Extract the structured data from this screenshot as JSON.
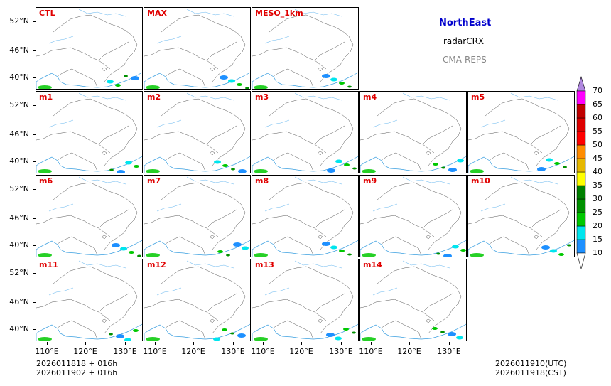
{
  "header": {
    "region": "NorthEast",
    "variable": "radarCRX",
    "system": "CMA-REPS",
    "region_color": "#0000cc",
    "system_color": "#888888"
  },
  "panels": [
    {
      "id": "CTL",
      "row": 0,
      "col": 0
    },
    {
      "id": "MAX",
      "row": 0,
      "col": 1
    },
    {
      "id": "MESO_1km",
      "row": 0,
      "col": 2
    },
    {
      "id": "m1",
      "row": 1,
      "col": 0
    },
    {
      "id": "m2",
      "row": 1,
      "col": 1
    },
    {
      "id": "m3",
      "row": 1,
      "col": 2
    },
    {
      "id": "m4",
      "row": 1,
      "col": 3
    },
    {
      "id": "m5",
      "row": 1,
      "col": 4
    },
    {
      "id": "m6",
      "row": 2,
      "col": 0
    },
    {
      "id": "m7",
      "row": 2,
      "col": 1
    },
    {
      "id": "m8",
      "row": 2,
      "col": 2
    },
    {
      "id": "m9",
      "row": 2,
      "col": 3
    },
    {
      "id": "m10",
      "row": 2,
      "col": 4
    },
    {
      "id": "m11",
      "row": 3,
      "col": 0
    },
    {
      "id": "m12",
      "row": 3,
      "col": 1
    },
    {
      "id": "m13",
      "row": 3,
      "col": 2
    },
    {
      "id": "m14",
      "row": 3,
      "col": 3
    }
  ],
  "axes": {
    "lat_labels": [
      "52°N",
      "46°N",
      "40°N"
    ],
    "lon_labels": [
      "110°E",
      "120°E",
      "130°E"
    ]
  },
  "colorbar": {
    "levels": [
      "10",
      "15",
      "20",
      "25",
      "30",
      "35",
      "40",
      "45",
      "50",
      "55",
      "60",
      "65",
      "70"
    ],
    "colors": [
      "#1e90ff",
      "#00e5ee",
      "#00c800",
      "#009000",
      "#008000",
      "#ffff00",
      "#e6b800",
      "#ff8c00",
      "#ff0000",
      "#dd0000",
      "#c00000",
      "#ff00ff",
      "#9933cc"
    ],
    "over_color": "#b088e0",
    "under_color": "#ffffff"
  },
  "footer": {
    "init_utc": "2026011818  +  016h",
    "init_cst": "2026011902  +  016h",
    "valid_utc": "2026011910(UTC)",
    "valid_cst": "2026011918(CST)"
  }
}
